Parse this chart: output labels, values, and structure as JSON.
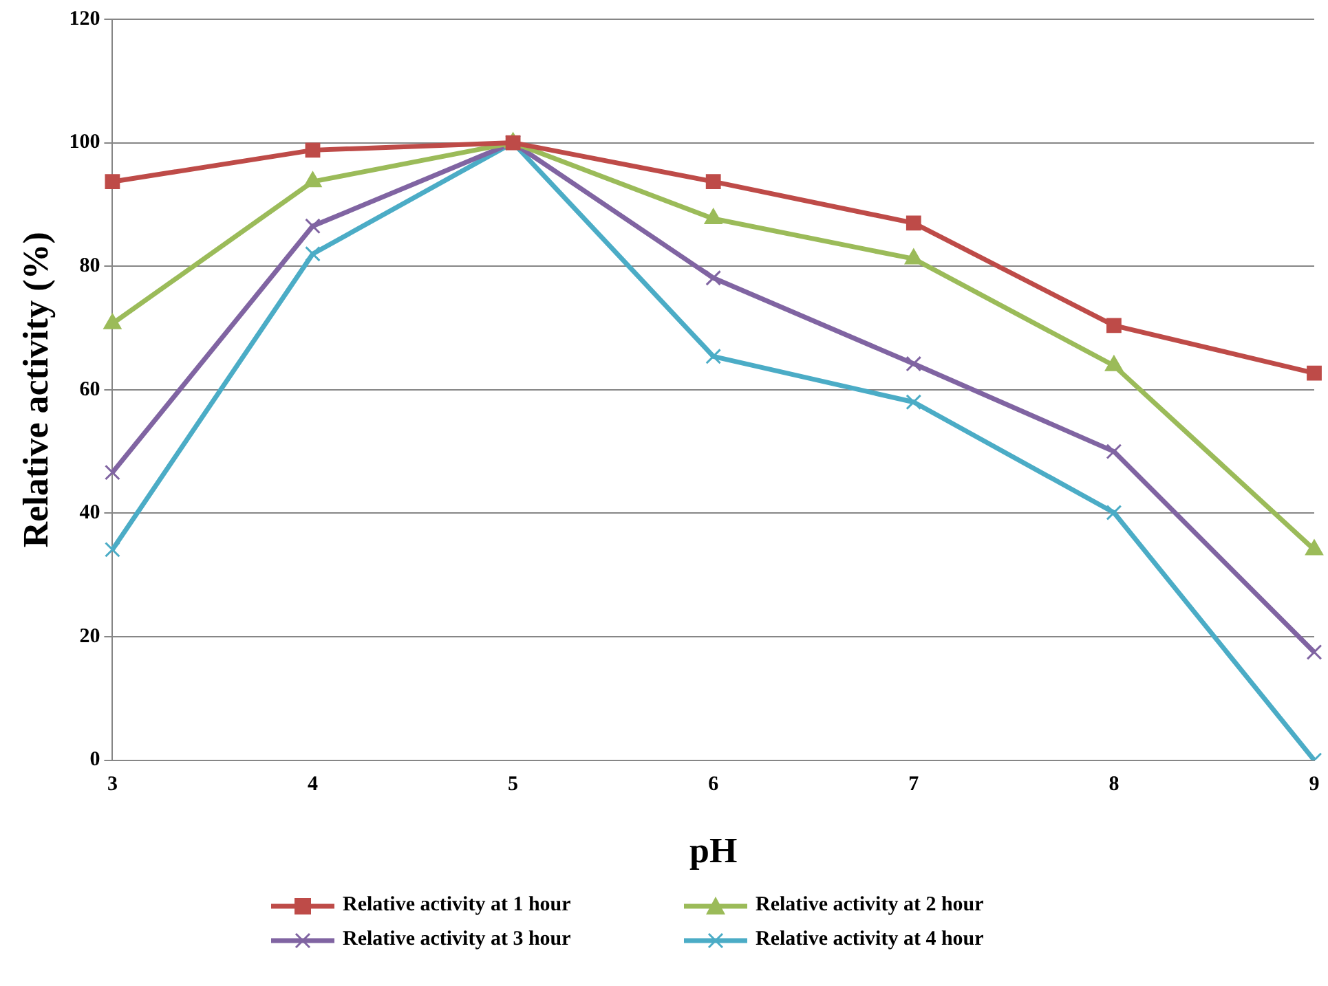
{
  "chart_data": {
    "type": "line",
    "xlabel": "pH",
    "ylabel": "Relative activity (%)",
    "categories": [
      "3",
      "4",
      "5",
      "6",
      "7",
      "8",
      "9"
    ],
    "ylim": [
      0,
      120
    ],
    "yticks": [
      0,
      20,
      40,
      60,
      80,
      100,
      120
    ],
    "grid": "y",
    "legend": "bottom",
    "series": [
      {
        "name": "Relative activity at 1 hour",
        "color": "#be4b48",
        "marker": "square",
        "values": [
          93.7,
          98.8,
          100,
          93.7,
          87,
          70.4,
          62.7
        ]
      },
      {
        "name": "Relative activity at 2 hour",
        "color": "#9bbb59",
        "marker": "triangle",
        "values": [
          70.7,
          93.7,
          100,
          87.7,
          81.2,
          63.9,
          34.1
        ]
      },
      {
        "name": "Relative activity at 3 hour",
        "color": "#8064a2",
        "marker": "cross",
        "values": [
          46.6,
          86.5,
          100,
          78.1,
          64.2,
          50,
          17.5
        ]
      },
      {
        "name": "Relative activity at 4 hour",
        "color": "#4bacc6",
        "marker": "cross",
        "values": [
          34.1,
          82,
          100,
          65.4,
          58,
          40.1,
          0
        ]
      }
    ]
  }
}
